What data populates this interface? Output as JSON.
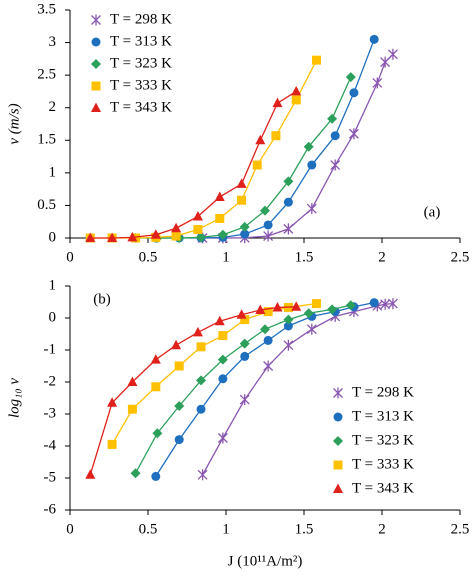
{
  "chart_data": [
    {
      "type": "line",
      "annotation": "(a)",
      "ylabel": "v (m/s)",
      "xlim": [
        0,
        2.5
      ],
      "xticks": [
        0,
        0.5,
        1,
        1.5,
        2,
        2.5
      ],
      "ylim": [
        0,
        3.5
      ],
      "yticks": [
        0,
        0.5,
        1,
        1.5,
        2,
        2.5,
        3,
        3.5
      ],
      "legend": "upper left",
      "series": [
        {
          "name": "T = 298 K",
          "color": "#8a56b0",
          "marker": "star",
          "x": [
            0.85,
            0.98,
            1.12,
            1.27,
            1.4,
            1.55,
            1.7,
            1.82,
            1.97,
            2.02,
            2.07
          ],
          "values": [
            0,
            0,
            0.003,
            0.03,
            0.14,
            0.45,
            1.12,
            1.6,
            2.38,
            2.7,
            2.82
          ]
        },
        {
          "name": "T = 313 K",
          "color": "#1f6fbf",
          "marker": "circle",
          "x": [
            0.55,
            0.7,
            0.84,
            0.98,
            1.12,
            1.27,
            1.4,
            1.55,
            1.7,
            1.82,
            1.95
          ],
          "values": [
            0,
            0,
            0.001,
            0.01,
            0.06,
            0.2,
            0.55,
            1.12,
            1.57,
            2.23,
            3.05
          ]
        },
        {
          "name": "T = 323 K",
          "color": "#2ca05a",
          "marker": "diamond",
          "x": [
            0.42,
            0.56,
            0.7,
            0.84,
            0.98,
            1.12,
            1.25,
            1.4,
            1.53,
            1.68,
            1.8
          ],
          "values": [
            0,
            0,
            0,
            0.01,
            0.05,
            0.17,
            0.42,
            0.87,
            1.4,
            1.83,
            2.47
          ]
        },
        {
          "name": "T = 333 K",
          "color": "#ffc000",
          "marker": "square",
          "x": [
            0.13,
            0.27,
            0.42,
            0.55,
            0.68,
            0.82,
            0.96,
            1.1,
            1.2,
            1.32,
            1.45,
            1.58
          ],
          "values": [
            0,
            0,
            0,
            0.01,
            0.03,
            0.13,
            0.3,
            0.58,
            1.12,
            1.57,
            2.12,
            2.73
          ]
        },
        {
          "name": "T = 343 K",
          "color": "#e0201b",
          "marker": "triangle",
          "x": [
            0.13,
            0.27,
            0.4,
            0.55,
            0.68,
            0.82,
            0.96,
            1.1,
            1.22,
            1.33,
            1.45
          ],
          "values": [
            0,
            0,
            0.01,
            0.05,
            0.15,
            0.33,
            0.63,
            0.83,
            1.5,
            2.07,
            2.25
          ]
        }
      ]
    },
    {
      "type": "line",
      "annotation": "(b)",
      "ylabel": "log₁₀ v",
      "xlabel": "J (10¹¹A/m²)",
      "xlim": [
        0,
        2.5
      ],
      "xticks": [
        0,
        0.5,
        1,
        1.5,
        2,
        2.5
      ],
      "ylim": [
        -6,
        1
      ],
      "yticks": [
        1,
        0,
        -1,
        -2,
        -3,
        -4,
        -5,
        -6
      ],
      "legend": "lower right",
      "series": [
        {
          "name": "T = 298 K",
          "color": "#8a56b0",
          "marker": "star",
          "x": [
            0.85,
            0.98,
            1.12,
            1.27,
            1.4,
            1.55,
            1.7,
            1.82,
            1.97,
            2.02,
            2.07
          ],
          "values": [
            -4.9,
            -3.75,
            -2.55,
            -1.5,
            -0.85,
            -0.35,
            0.05,
            0.2,
            0.38,
            0.43,
            0.45
          ]
        },
        {
          "name": "T = 313 K",
          "color": "#1f6fbf",
          "marker": "circle",
          "x": [
            0.55,
            0.7,
            0.84,
            0.98,
            1.12,
            1.27,
            1.4,
            1.55,
            1.7,
            1.82,
            1.95
          ],
          "values": [
            -4.95,
            -3.8,
            -2.85,
            -1.9,
            -1.2,
            -0.7,
            -0.25,
            0.05,
            0.2,
            0.35,
            0.48
          ]
        },
        {
          "name": "T = 323 K",
          "color": "#2ca05a",
          "marker": "diamond",
          "x": [
            0.42,
            0.56,
            0.7,
            0.84,
            0.98,
            1.12,
            1.25,
            1.4,
            1.53,
            1.68,
            1.8
          ],
          "values": [
            -4.85,
            -3.6,
            -2.75,
            -1.95,
            -1.3,
            -0.8,
            -0.35,
            -0.05,
            0.15,
            0.27,
            0.4
          ]
        },
        {
          "name": "T = 333 K",
          "color": "#ffc000",
          "marker": "square",
          "x": [
            0.27,
            0.4,
            0.55,
            0.7,
            0.84,
            0.98,
            1.12,
            1.27,
            1.4,
            1.58
          ],
          "values": [
            -3.95,
            -2.85,
            -2.15,
            -1.5,
            -0.9,
            -0.55,
            -0.05,
            0.2,
            0.33,
            0.45
          ]
        },
        {
          "name": "T = 343 K",
          "color": "#e0201b",
          "marker": "triangle",
          "x": [
            0.13,
            0.27,
            0.4,
            0.55,
            0.68,
            0.82,
            0.96,
            1.1,
            1.22,
            1.33,
            1.45
          ],
          "values": [
            -4.9,
            -2.65,
            -2.0,
            -1.3,
            -0.85,
            -0.45,
            -0.1,
            0.1,
            0.25,
            0.33,
            0.35
          ]
        }
      ]
    }
  ]
}
